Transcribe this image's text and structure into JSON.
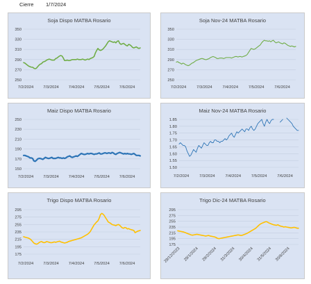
{
  "header": {
    "label": "Cierre",
    "date": "1/7/2024"
  },
  "chart_data": [
    {
      "type": "line",
      "title": "Soja Dispo MATBA Rosario",
      "color": "#70ad47",
      "ylim": [
        250,
        350
      ],
      "yticks": [
        "250",
        "270",
        "290",
        "310",
        "330",
        "350"
      ],
      "xlabels": [
        "7/2/2024",
        "7/3/2024",
        "7/4/2024",
        "7/5/2024",
        "7/6/2024"
      ],
      "values": [
        284,
        283,
        281,
        279,
        277,
        276,
        275,
        275,
        273,
        272,
        273,
        276,
        279,
        281,
        282,
        285,
        286,
        287,
        289,
        290,
        291,
        290,
        289,
        289,
        289,
        292,
        293,
        295,
        297,
        298,
        297,
        293,
        288,
        288,
        289,
        288,
        288,
        289,
        290,
        290,
        290,
        290,
        291,
        290,
        290,
        290,
        291,
        290,
        289,
        290,
        291,
        290,
        292,
        293,
        294,
        296,
        303,
        308,
        312,
        309,
        308,
        309,
        311,
        314,
        317,
        321,
        325,
        327,
        326,
        325,
        324,
        325,
        323,
        326,
        327,
        322,
        320,
        321,
        322,
        320,
        318,
        317,
        320,
        319,
        317,
        314,
        313,
        314,
        315,
        313,
        312,
        313
      ]
    },
    {
      "type": "line",
      "title": "Soja Nov-24 MATBA Rosario",
      "color": "#70ad47",
      "ylim": [
        250,
        350
      ],
      "yticks": [
        "250",
        "270",
        "290",
        "310",
        "330",
        "350"
      ],
      "xlabels": [
        "7/2/2024",
        "7/3/2024",
        "7/4/2024",
        "7/5/2024",
        "7/6/2024"
      ],
      "values": [
        285,
        286,
        284,
        283,
        281,
        283,
        282,
        280,
        279,
        278,
        279,
        281,
        283,
        284,
        286,
        288,
        289,
        290,
        291,
        292,
        292,
        291,
        290,
        290,
        291,
        292,
        294,
        295,
        296,
        295,
        294,
        292,
        292,
        293,
        293,
        293,
        292,
        293,
        294,
        294,
        294,
        294,
        293,
        294,
        295,
        296,
        296,
        295,
        296,
        296,
        295,
        296,
        297,
        298,
        300,
        304,
        308,
        312,
        311,
        310,
        311,
        313,
        315,
        317,
        319,
        323,
        326,
        328,
        327,
        327,
        326,
        327,
        325,
        327,
        328,
        325,
        323,
        324,
        325,
        323,
        322,
        321,
        323,
        322,
        320,
        318,
        317,
        316,
        317,
        316,
        315,
        316
      ]
    },
    {
      "type": "line",
      "title": "Maiz Dispo MATBA Rosario",
      "color": "#2e75b6",
      "ylim": [
        150,
        250
      ],
      "yticks": [
        "150",
        "170",
        "190",
        "210",
        "230",
        "250"
      ],
      "xlabels": [
        "7/2/2024",
        "7/3/2024",
        "7/4/2024",
        "7/5/2024",
        "7/6/2024"
      ],
      "values": [
        177,
        177,
        176,
        175,
        174,
        172,
        172,
        171,
        166,
        165,
        167,
        170,
        171,
        171,
        170,
        169,
        171,
        173,
        172,
        171,
        171,
        172,
        173,
        171,
        171,
        171,
        172,
        173,
        172,
        172,
        171,
        172,
        171,
        172,
        174,
        175,
        176,
        174,
        173,
        174,
        175,
        176,
        175,
        177,
        179,
        181,
        180,
        179,
        179,
        180,
        181,
        180,
        181,
        181,
        180,
        179,
        180,
        180,
        181,
        182,
        180,
        180,
        181,
        182,
        182,
        181,
        182,
        182,
        181,
        183,
        182,
        180,
        179,
        181,
        182,
        183,
        182,
        181,
        180,
        181,
        180,
        181,
        180,
        180,
        179,
        180,
        181,
        179,
        177,
        177,
        177,
        176
      ]
    },
    {
      "type": "line",
      "title": "Maiz Nov-24 MATBA Rosario",
      "color": "#2e75b6",
      "ylim": [
        1.5,
        1.85
      ],
      "yticks": [
        "1.50",
        "1.55",
        "1.60",
        "1.65",
        "1.70",
        "1.75",
        "1.80",
        "1.85"
      ],
      "xlabels": [
        "7/2/2024",
        "7/3/2024",
        "7/4/2024",
        "7/5/2024",
        "7/6/2024"
      ],
      "values": [
        1.67,
        1.68,
        1.67,
        1.66,
        1.66,
        1.65,
        1.62,
        1.6,
        1.58,
        1.59,
        1.61,
        1.63,
        1.62,
        1.61,
        1.64,
        1.66,
        1.65,
        1.64,
        1.66,
        1.68,
        1.67,
        1.66,
        1.66,
        1.68,
        1.69,
        1.68,
        1.68,
        1.7,
        1.7,
        1.69,
        1.69,
        1.68,
        1.69,
        1.69,
        1.7,
        1.71,
        1.7,
        1.71,
        1.73,
        1.74,
        1.75,
        1.73,
        1.72,
        1.74,
        1.76,
        1.75,
        1.76,
        1.77,
        1.78,
        1.77,
        1.76,
        1.78,
        1.78,
        1.77,
        1.79,
        1.8,
        1.78,
        1.77,
        1.78,
        1.8,
        1.82,
        1.83,
        1.84,
        1.85,
        1.82,
        1.8,
        1.83,
        1.85,
        1.83,
        1.82,
        1.84,
        1.85,
        1.85,
        null,
        null,
        null,
        null,
        1.83,
        1.84,
        1.85,
        null,
        null,
        1.86,
        1.85,
        1.84,
        1.83,
        1.82,
        1.8,
        1.79,
        1.78,
        1.77,
        1.77
      ]
    },
    {
      "type": "line",
      "title": "Trigo Dispo MATBA Rosario",
      "color": "#ffc000",
      "ylim": [
        175,
        295
      ],
      "yticks": [
        "175",
        "195",
        "215",
        "235",
        "255",
        "275",
        "295"
      ],
      "xlabels": [
        "7/2/2024",
        "7/3/2024",
        "7/4/2024",
        "7/5/2024",
        "7/6/2024"
      ],
      "values": [
        222,
        221,
        220,
        219,
        218,
        216,
        213,
        209,
        205,
        203,
        202,
        203,
        206,
        208,
        209,
        207,
        206,
        207,
        209,
        208,
        207,
        206,
        206,
        207,
        208,
        207,
        208,
        209,
        210,
        208,
        207,
        206,
        205,
        206,
        207,
        209,
        210,
        211,
        212,
        213,
        214,
        215,
        216,
        217,
        218,
        219,
        221,
        223,
        225,
        227,
        229,
        232,
        236,
        242,
        248,
        254,
        258,
        262,
        265,
        272,
        282,
        285,
        283,
        279,
        273,
        268,
        262,
        260,
        258,
        255,
        254,
        253,
        252,
        254,
        255,
        253,
        249,
        246,
        245,
        247,
        246,
        243,
        244,
        242,
        241,
        240,
        239,
        233,
        235,
        237,
        238,
        239
      ]
    },
    {
      "type": "line",
      "title": "Trigo Dic-24 MATBA Rosario",
      "color": "#ffc000",
      "ylim": [
        175,
        295
      ],
      "yticks": [
        "175",
        "195",
        "215",
        "235",
        "255",
        "275",
        "295"
      ],
      "xlabels": [
        "29/12/2023",
        "29/1/2024",
        "29/2/2024",
        "31/3/2024",
        "30/4/2024",
        "31/5/2024",
        "30/6/2024"
      ],
      "values": [
        222,
        221,
        220,
        219,
        218,
        216,
        214,
        212,
        210,
        208,
        207,
        208,
        209,
        210,
        209,
        208,
        207,
        206,
        205,
        204,
        205,
        206,
        204,
        203,
        202,
        201,
        199,
        196,
        195,
        196,
        197,
        198,
        199,
        200,
        201,
        202,
        203,
        204,
        205,
        206,
        207,
        208,
        207,
        206,
        207,
        209,
        211,
        213,
        216,
        219,
        222,
        225,
        228,
        231,
        236,
        241,
        245,
        248,
        250,
        252,
        254,
        252,
        249,
        247,
        245,
        243,
        242,
        241,
        243,
        240,
        238,
        237,
        235,
        236,
        235,
        234,
        233,
        232,
        233,
        234,
        233,
        231,
        231
      ]
    }
  ]
}
